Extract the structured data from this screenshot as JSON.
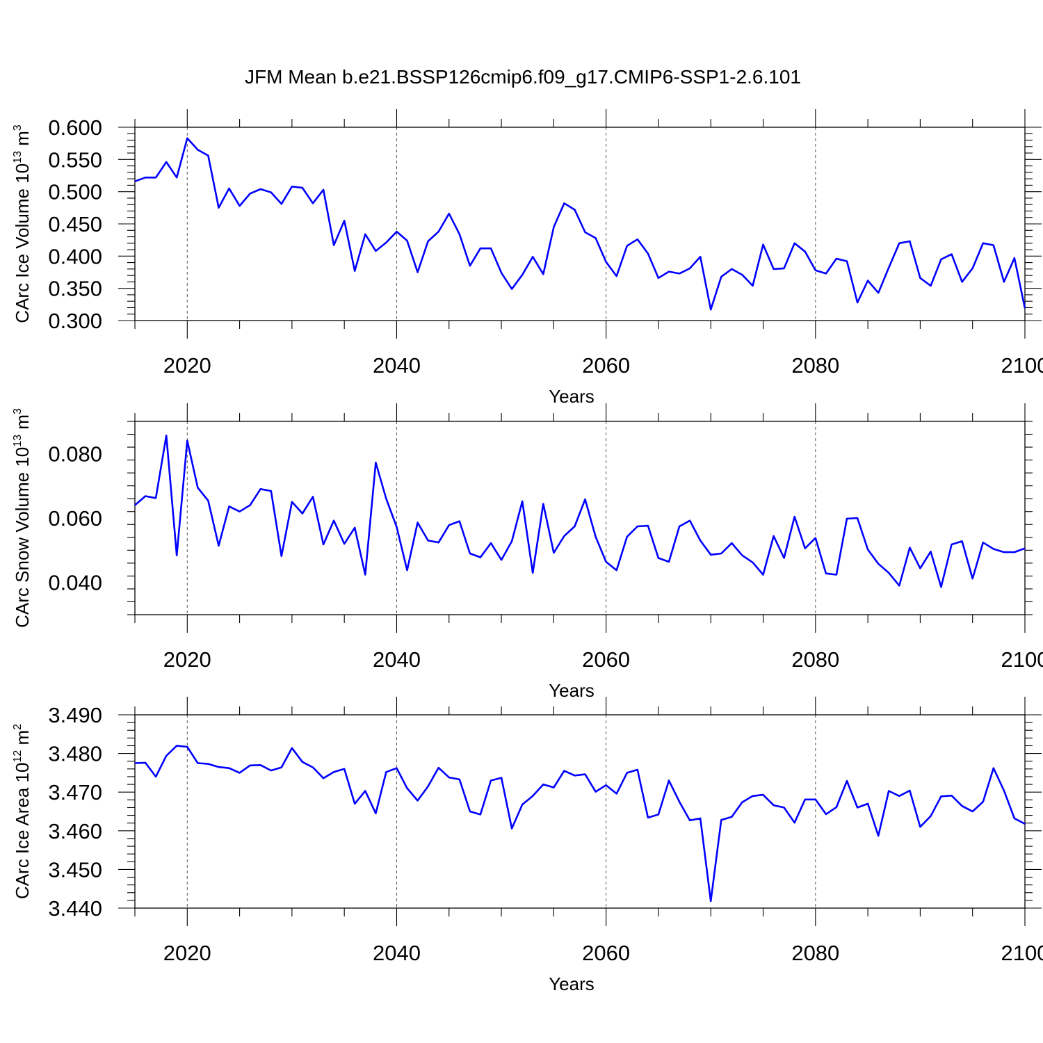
{
  "title": "JFM Mean b.e21.BSSP126cmip6.f09_g17.CMIP6-SSP1-2.6.101",
  "chart_data": [
    {
      "type": "line",
      "xlabel": "Years",
      "ylabel_main": "CArc Ice Volume 10",
      "ylabel_exp": "13",
      "ylabel_unit": " m",
      "ylabel_unit_exp": "3",
      "xlim": [
        2015,
        2100
      ],
      "ylim": [
        0.3,
        0.6
      ],
      "xticks": [
        "2020",
        "2040",
        "2060",
        "2080",
        "2100"
      ],
      "xtick_values": [
        2020,
        2040,
        2060,
        2080,
        2100
      ],
      "yticks": [
        "0.300",
        "0.350",
        "0.400",
        "0.450",
        "0.500",
        "0.550",
        "0.600"
      ],
      "ytick_values": [
        0.3,
        0.35,
        0.4,
        0.45,
        0.5,
        0.55,
        0.6
      ],
      "grid": "vertical dashed at labeled years",
      "color": "#0000ff",
      "x_start": 2015,
      "values": [
        0.516,
        0.522,
        0.522,
        0.546,
        0.522,
        0.583,
        0.565,
        0.556,
        0.475,
        0.505,
        0.478,
        0.497,
        0.504,
        0.499,
        0.481,
        0.508,
        0.506,
        0.482,
        0.503,
        0.417,
        0.455,
        0.377,
        0.434,
        0.408,
        0.421,
        0.438,
        0.424,
        0.375,
        0.423,
        0.438,
        0.466,
        0.434,
        0.385,
        0.412,
        0.412,
        0.374,
        0.349,
        0.371,
        0.399,
        0.372,
        0.445,
        0.482,
        0.472,
        0.437,
        0.428,
        0.391,
        0.369,
        0.416,
        0.426,
        0.404,
        0.366,
        0.376,
        0.373,
        0.381,
        0.399,
        0.317,
        0.368,
        0.38,
        0.371,
        0.354,
        0.418,
        0.38,
        0.381,
        0.42,
        0.407,
        0.378,
        0.373,
        0.396,
        0.392,
        0.328,
        0.362,
        0.343,
        0.382,
        0.42,
        0.423,
        0.366,
        0.354,
        0.395,
        0.403,
        0.36,
        0.381,
        0.42,
        0.417,
        0.36,
        0.397,
        0.319
      ]
    },
    {
      "type": "line",
      "xlabel": "Years",
      "ylabel_main": "CArc Snow Volume 10",
      "ylabel_exp": "13",
      "ylabel_unit": " m",
      "ylabel_unit_exp": "3",
      "xlim": [
        2015,
        2100
      ],
      "ylim": [
        0.03,
        0.09
      ],
      "xticks": [
        "2020",
        "2040",
        "2060",
        "2080",
        "2100"
      ],
      "xtick_values": [
        2020,
        2040,
        2060,
        2080,
        2100
      ],
      "yticks": [
        "0.040",
        "0.060",
        "0.080"
      ],
      "ytick_values": [
        0.04,
        0.06,
        0.08
      ],
      "grid": "vertical dashed at labeled years",
      "color": "#0000ff",
      "x_start": 2015,
      "values": [
        0.064,
        0.0668,
        0.0662,
        0.0856,
        0.0484,
        0.084,
        0.0694,
        0.0654,
        0.0514,
        0.0636,
        0.062,
        0.064,
        0.069,
        0.0684,
        0.0482,
        0.065,
        0.0614,
        0.0666,
        0.0518,
        0.0592,
        0.052,
        0.057,
        0.0424,
        0.0772,
        0.066,
        0.0572,
        0.0438,
        0.0586,
        0.053,
        0.0524,
        0.0578,
        0.059,
        0.049,
        0.0478,
        0.0522,
        0.047,
        0.0528,
        0.0652,
        0.043,
        0.0644,
        0.0492,
        0.0544,
        0.0574,
        0.0658,
        0.0542,
        0.0464,
        0.0438,
        0.0542,
        0.0574,
        0.0576,
        0.0476,
        0.0464,
        0.0574,
        0.0592,
        0.053,
        0.0486,
        0.049,
        0.0522,
        0.0484,
        0.0462,
        0.0424,
        0.0544,
        0.0476,
        0.0604,
        0.0506,
        0.0538,
        0.0428,
        0.0424,
        0.0598,
        0.06,
        0.0502,
        0.0458,
        0.043,
        0.039,
        0.0508,
        0.0444,
        0.0496,
        0.0386,
        0.0518,
        0.0528,
        0.0412,
        0.0524,
        0.0504,
        0.0494,
        0.0494,
        0.0506
      ]
    },
    {
      "type": "line",
      "xlabel": "Years",
      "ylabel_main": "CArc Ice Area 10",
      "ylabel_exp": "12",
      "ylabel_unit": " m",
      "ylabel_unit_exp": "2",
      "xlim": [
        2015,
        2100
      ],
      "ylim": [
        3.44,
        3.49
      ],
      "xticks": [
        "2020",
        "2040",
        "2060",
        "2080",
        "2100"
      ],
      "xtick_values": [
        2020,
        2040,
        2060,
        2080,
        2100
      ],
      "yticks": [
        "3.440",
        "3.450",
        "3.460",
        "3.470",
        "3.480",
        "3.490"
      ],
      "ytick_values": [
        3.44,
        3.45,
        3.46,
        3.47,
        3.48,
        3.49
      ],
      "grid": "vertical dashed at labeled years",
      "color": "#0000ff",
      "x_start": 2015,
      "values": [
        3.4775,
        3.4776,
        3.474,
        3.4794,
        3.482,
        3.4817,
        3.4775,
        3.4773,
        3.4765,
        3.4762,
        3.475,
        3.4769,
        3.477,
        3.4756,
        3.4764,
        3.4814,
        3.4778,
        3.4764,
        3.4736,
        3.4752,
        3.476,
        3.467,
        3.4703,
        3.4645,
        3.4752,
        3.4762,
        3.471,
        3.4678,
        3.4715,
        3.4763,
        3.4738,
        3.4733,
        3.465,
        3.4642,
        3.473,
        3.4737,
        3.4606,
        3.4668,
        3.469,
        3.472,
        3.4712,
        3.4755,
        3.4743,
        3.4746,
        3.4701,
        3.4718,
        3.4696,
        3.475,
        3.4758,
        3.4634,
        3.4642,
        3.473,
        3.4675,
        3.4627,
        3.4632,
        3.4418,
        3.4628,
        3.4636,
        3.4674,
        3.469,
        3.4693,
        3.4666,
        3.466,
        3.4621,
        3.4681,
        3.4681,
        3.4643,
        3.4661,
        3.4729,
        3.466,
        3.467,
        3.4587,
        3.4703,
        3.469,
        3.4704,
        3.461,
        3.4638,
        3.4689,
        3.4691,
        3.4664,
        3.465,
        3.4675,
        3.4762,
        3.4704,
        3.4632,
        3.4618
      ]
    }
  ]
}
